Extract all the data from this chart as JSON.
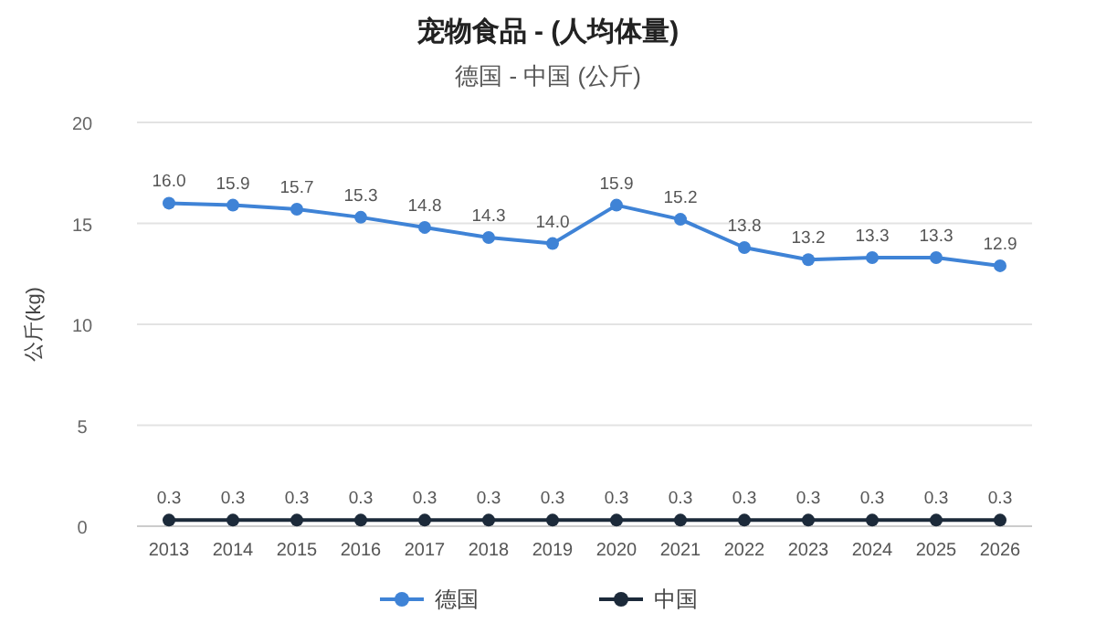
{
  "chart_data": {
    "type": "line",
    "title": "宠物食品 - (人均体量)",
    "subtitle": "德国 - 中国 (公斤)",
    "ylabel": "公斤(kg)",
    "categories": [
      "2013",
      "2014",
      "2015",
      "2016",
      "2017",
      "2018",
      "2019",
      "2020",
      "2021",
      "2022",
      "2023",
      "2024",
      "2025",
      "2026"
    ],
    "series": [
      {
        "name": "德国",
        "color": "#3f83d6",
        "values": [
          16.0,
          15.9,
          15.7,
          15.3,
          14.8,
          14.3,
          14.0,
          15.9,
          15.2,
          13.8,
          13.2,
          13.3,
          13.3,
          12.9
        ],
        "value_labels": [
          "16.0",
          "15.9",
          "15.7",
          "15.3",
          "14.8",
          "14.3",
          "14.0",
          "15.9",
          "15.2",
          "13.8",
          "13.2",
          "13.3",
          "13.3",
          "12.9"
        ]
      },
      {
        "name": "中国",
        "color": "#1c2a3a",
        "values": [
          0.3,
          0.3,
          0.3,
          0.3,
          0.3,
          0.3,
          0.3,
          0.3,
          0.3,
          0.3,
          0.3,
          0.3,
          0.3,
          0.3
        ],
        "value_labels": [
          "0.3",
          "0.3",
          "0.3",
          "0.3",
          "0.3",
          "0.3",
          "0.3",
          "0.3",
          "0.3",
          "0.3",
          "0.3",
          "0.3",
          "0.3",
          "0.3"
        ]
      }
    ],
    "ylim": [
      0,
      20
    ],
    "yticks": [
      0,
      5,
      10,
      15,
      20
    ],
    "grid": "y",
    "legend": "bottom",
    "marker": "circle",
    "line_style": "solid"
  }
}
